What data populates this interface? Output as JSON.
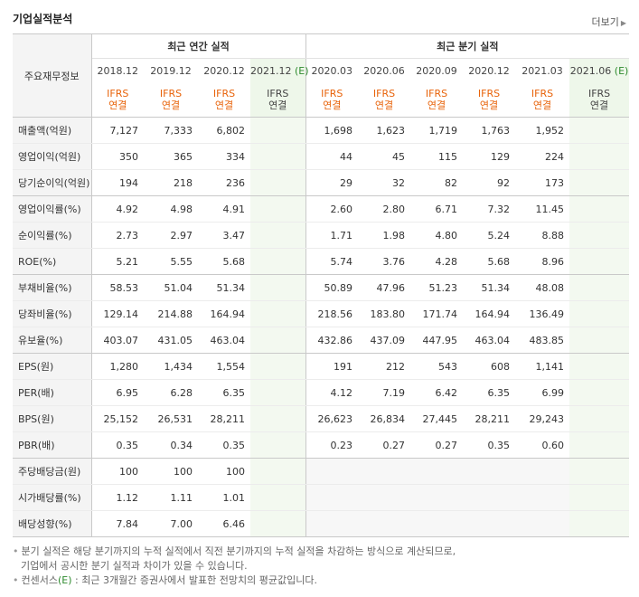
{
  "title": "기업실적분석",
  "more_label": "더보기",
  "header": {
    "rowlabel": "주요재무정보",
    "group_annual": "최근 연간 실적",
    "group_quarter": "최근 분기 실적",
    "annual_periods": [
      "2018.12",
      "2019.12",
      "2020.12",
      "2021.12"
    ],
    "quarter_periods": [
      "2020.03",
      "2020.06",
      "2020.09",
      "2020.12",
      "2021.03",
      "2021.06"
    ],
    "est_mark": "(E)",
    "ifrs_top": "IFRS",
    "ifrs_bottom": "연결"
  },
  "rows": [
    {
      "label": "매출액(억원)",
      "annual": [
        "7,127",
        "7,333",
        "6,802",
        ""
      ],
      "quarter": [
        "1,698",
        "1,623",
        "1,719",
        "1,763",
        "1,952",
        ""
      ]
    },
    {
      "label": "영업이익(억원)",
      "annual": [
        "350",
        "365",
        "334",
        ""
      ],
      "quarter": [
        "44",
        "45",
        "115",
        "129",
        "224",
        ""
      ]
    },
    {
      "label": "당기순이익(억원)",
      "annual": [
        "194",
        "218",
        "236",
        ""
      ],
      "quarter": [
        "29",
        "32",
        "82",
        "92",
        "173",
        ""
      ]
    },
    {
      "label": "영업이익률(%)",
      "annual": [
        "4.92",
        "4.98",
        "4.91",
        ""
      ],
      "quarter": [
        "2.60",
        "2.80",
        "6.71",
        "7.32",
        "11.45",
        ""
      ]
    },
    {
      "label": "순이익률(%)",
      "annual": [
        "2.73",
        "2.97",
        "3.47",
        ""
      ],
      "quarter": [
        "1.71",
        "1.98",
        "4.80",
        "5.24",
        "8.88",
        ""
      ]
    },
    {
      "label": "ROE(%)",
      "annual": [
        "5.21",
        "5.55",
        "5.68",
        ""
      ],
      "quarter": [
        "5.74",
        "3.76",
        "4.28",
        "5.68",
        "8.96",
        ""
      ]
    },
    {
      "label": "부채비율(%)",
      "annual": [
        "58.53",
        "51.04",
        "51.34",
        ""
      ],
      "quarter": [
        "50.89",
        "47.96",
        "51.23",
        "51.34",
        "48.08",
        ""
      ]
    },
    {
      "label": "당좌비율(%)",
      "annual": [
        "129.14",
        "214.88",
        "164.94",
        ""
      ],
      "quarter": [
        "218.56",
        "183.80",
        "171.74",
        "164.94",
        "136.49",
        ""
      ]
    },
    {
      "label": "유보율(%)",
      "annual": [
        "403.07",
        "431.05",
        "463.04",
        ""
      ],
      "quarter": [
        "432.86",
        "437.09",
        "447.95",
        "463.04",
        "483.85",
        ""
      ]
    },
    {
      "label": "EPS(원)",
      "annual": [
        "1,280",
        "1,434",
        "1,554",
        ""
      ],
      "quarter": [
        "191",
        "212",
        "543",
        "608",
        "1,141",
        ""
      ]
    },
    {
      "label": "PER(배)",
      "annual": [
        "6.95",
        "6.28",
        "6.35",
        ""
      ],
      "quarter": [
        "4.12",
        "7.19",
        "6.42",
        "6.35",
        "6.99",
        ""
      ]
    },
    {
      "label": "BPS(원)",
      "annual": [
        "25,152",
        "26,531",
        "28,211",
        ""
      ],
      "quarter": [
        "26,623",
        "26,834",
        "27,445",
        "28,211",
        "29,243",
        ""
      ]
    },
    {
      "label": "PBR(배)",
      "annual": [
        "0.35",
        "0.34",
        "0.35",
        ""
      ],
      "quarter": [
        "0.23",
        "0.27",
        "0.27",
        "0.35",
        "0.60",
        ""
      ]
    },
    {
      "label": "주당배당금(원)",
      "annual": [
        "100",
        "100",
        "100",
        ""
      ],
      "quarter": [
        "",
        "",
        "",
        "",
        "",
        ""
      ]
    },
    {
      "label": "시가배당률(%)",
      "annual": [
        "1.12",
        "1.11",
        "1.01",
        ""
      ],
      "quarter": [
        "",
        "",
        "",
        "",
        "",
        ""
      ]
    },
    {
      "label": "배당성향(%)",
      "annual": [
        "7.84",
        "7.00",
        "6.46",
        ""
      ],
      "quarter": [
        "",
        "",
        "",
        "",
        "",
        ""
      ]
    }
  ],
  "notes": [
    "분기 실적은 해당 분기까지의 누적 실적에서 직전 분기까지의 누적 실적을 차감하는 방식으로 계산되므로,",
    "기업에서 공시한 분기 실적과 차이가 있을 수 있습니다.",
    "컨센서스",
    "(E)",
    ": 최근 3개월간 증권사에서 발표한 전망치의 평균값입니다."
  ]
}
